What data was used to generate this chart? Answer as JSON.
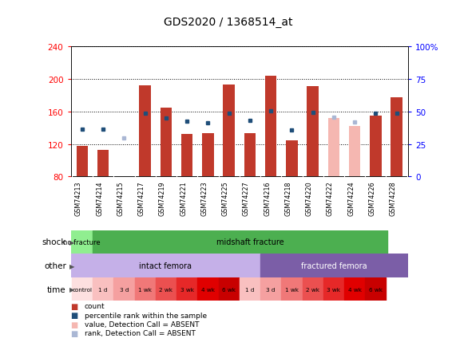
{
  "title": "GDS2020 / 1368514_at",
  "samples": [
    "GSM74213",
    "GSM74214",
    "GSM74215",
    "GSM74217",
    "GSM74219",
    "GSM74221",
    "GSM74223",
    "GSM74225",
    "GSM74227",
    "GSM74216",
    "GSM74218",
    "GSM74220",
    "GSM74222",
    "GSM74224",
    "GSM74226",
    "GSM74228"
  ],
  "bar_values": [
    118,
    113,
    0,
    192,
    165,
    132,
    133,
    193,
    133,
    204,
    124,
    191,
    0,
    0,
    155,
    177
  ],
  "bar_absent_values": [
    0,
    0,
    80,
    0,
    0,
    0,
    0,
    0,
    0,
    0,
    0,
    0,
    152,
    142,
    0,
    0
  ],
  "rank_values": [
    138,
    138,
    0,
    158,
    152,
    148,
    146,
    158,
    149,
    161,
    137,
    159,
    0,
    0,
    158,
    158
  ],
  "rank_absent_values": [
    0,
    0,
    127,
    0,
    0,
    0,
    0,
    0,
    0,
    0,
    0,
    0,
    153,
    147,
    0,
    0
  ],
  "bar_color": "#c0392b",
  "bar_absent_color": "#f5b7b1",
  "rank_color": "#1f4e79",
  "rank_absent_color": "#aab7d4",
  "ylim_left": [
    80,
    240
  ],
  "ylim_right": [
    0,
    100
  ],
  "yticks_left": [
    80,
    120,
    160,
    200,
    240
  ],
  "yticks_right": [
    0,
    25,
    50,
    75,
    100
  ],
  "ytick_labels_right": [
    "0",
    "25",
    "50",
    "75",
    "100%"
  ],
  "shock_no_fracture_color": "#90ee90",
  "shock_midshaft_color": "#4caf50",
  "other_intact_color": "#c5b0e8",
  "other_fractured_color": "#7b5ea7",
  "time_colors": [
    "#fde0e0",
    "#f9c0c0",
    "#f5a0a0",
    "#f07878",
    "#eb5050",
    "#e62828",
    "#e00000",
    "#c80000",
    "#f9c0c0",
    "#f5a0a0",
    "#f07878",
    "#eb5050",
    "#e62828",
    "#e00000",
    "#c80000"
  ],
  "time_labels": [
    "control",
    "1 d",
    "3 d",
    "1 wk",
    "2 wk",
    "3 wk",
    "4 wk",
    "6 wk",
    "1 d",
    "3 d",
    "1 wk",
    "2 wk",
    "3 wk",
    "4 wk",
    "6 wk"
  ],
  "xlabel_bg": "#d0d0d0",
  "background_color": "#ffffff"
}
